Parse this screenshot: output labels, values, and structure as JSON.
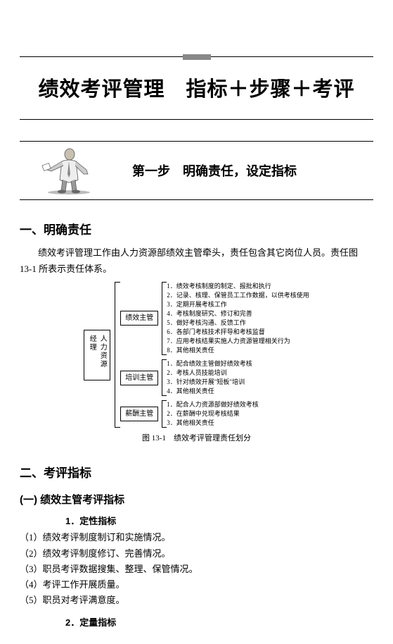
{
  "title": "绩效考评管理　指标＋步骤＋考评",
  "step": {
    "label": "第一步",
    "text": "明确责任，设定指标"
  },
  "sections": {
    "s1": {
      "heading": "一、明确责任",
      "para1": "绩效考评管理工作由人力资源部绩效主管牵头，责任包含其它岗位人员。责任图",
      "para2": "13-1 所表示责任体系。"
    },
    "s2": {
      "heading": "二、考评指标"
    },
    "s2_1": {
      "heading": "(一) 绩效主管考评指标",
      "sub1": "1．定性指标",
      "items": [
        "（1）绩效考评制度制订和实施情况。",
        "（2）绩效考评制度修订、完善情况。",
        "（3）职员考评数据搜集、整理、保管情况。",
        "（4）考评工作开展质量。",
        "（5）职员对考评满意度。"
      ],
      "sub2": "2．定量指标"
    }
  },
  "diagram": {
    "root": "人力资源经理",
    "caption": "图 13-1　绩效考评管理责任划分",
    "branches": [
      {
        "box": "绩效主管",
        "items": [
          "1．绩效考核制度的制定、报批和执行",
          "2．记录、核理、保管员工工作数据，以供考核使用",
          "3．定期开展考核工作",
          "4．考核制度研究、修订和完善",
          "5．做好考核沟通、反馈工作",
          "6．各部门考核技术抨导和考核监督",
          "7．应用考核结果实施人力资源管理相关行为",
          "8．其他相关责任"
        ]
      },
      {
        "box": "培训主管",
        "items": [
          "1．配合绩效主管做好绩效考核",
          "2．考核人员技能培训",
          "3．针对绩效开展\"短板\"培训",
          "4．其他相关责任"
        ]
      },
      {
        "box": "薪酬主管",
        "items": [
          "1．配合人力资源部做好绩效考核",
          "2．在薪酬中兑现考核结果",
          "3．其他相关责任"
        ]
      }
    ]
  }
}
